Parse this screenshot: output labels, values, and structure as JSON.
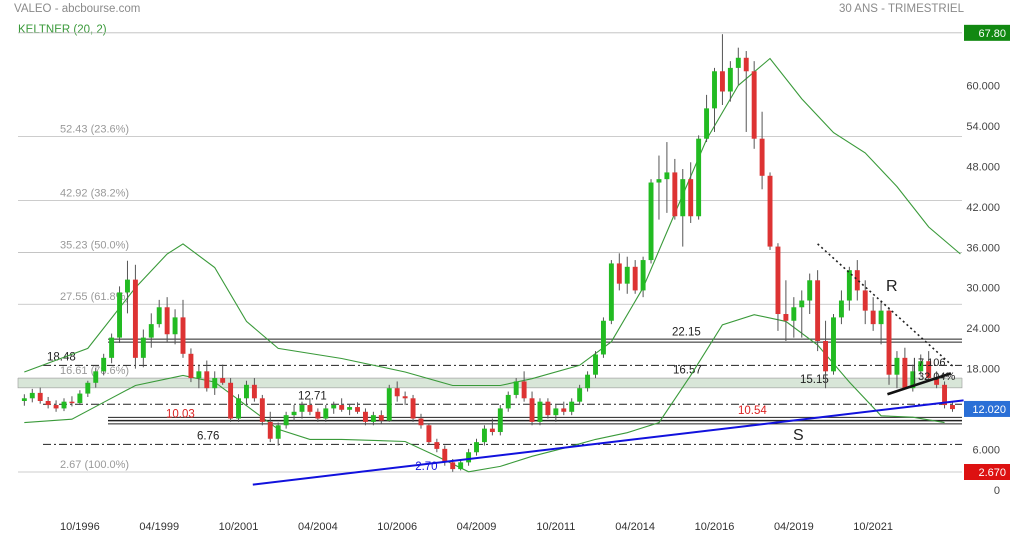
{
  "header": {
    "source": "VALEO - abcbourse.com",
    "period": "30 ANS - TRIMESTRIEL",
    "indicator": "KELTNER (20, 2)"
  },
  "colors": {
    "up": "#22bb22",
    "down": "#dd3333",
    "keltner": "#3a9a3a",
    "fib": "#b0b0b0",
    "trend_support": "#1111dd",
    "resistance_dotted": "#222222",
    "last_price_bg": "#2a6fd6",
    "high_bg": "#118811",
    "low_bg": "#dd1111",
    "zone": "#d8e6d8"
  },
  "chart_data": {
    "type": "candlestick",
    "title": "VALEO",
    "ylim": [
      0,
      70
    ],
    "y_ticks": [
      0,
      6.0,
      12.0,
      18.0,
      24.0,
      30.0,
      36.0,
      42.0,
      48.0,
      54.0,
      60.0
    ],
    "y_tick_labels": [
      "0",
      "6.000",
      "12.000",
      "18.000",
      "24.000",
      "30.000",
      "36.000",
      "42.000",
      "48.000",
      "54.000",
      "60.000"
    ],
    "x_tick_labels": [
      "10/1996",
      "04/1999",
      "10/2001",
      "04/2004",
      "10/2006",
      "04/2009",
      "10/2011",
      "04/2014",
      "10/2016",
      "04/2019",
      "10/2021"
    ],
    "x_range": [
      "1995",
      "2023"
    ],
    "candles": [
      {
        "x": 1995.0,
        "o": 13.2,
        "h": 14.2,
        "l": 12.5,
        "c": 13.6
      },
      {
        "x": 1995.25,
        "o": 13.6,
        "h": 15.0,
        "l": 13.0,
        "c": 14.4
      },
      {
        "x": 1995.5,
        "o": 14.4,
        "h": 15.2,
        "l": 12.8,
        "c": 13.2
      },
      {
        "x": 1995.75,
        "o": 13.2,
        "h": 13.8,
        "l": 12.1,
        "c": 12.6
      },
      {
        "x": 1996.0,
        "o": 12.6,
        "h": 13.3,
        "l": 11.6,
        "c": 12.1
      },
      {
        "x": 1996.25,
        "o": 12.1,
        "h": 13.6,
        "l": 11.7,
        "c": 13.1
      },
      {
        "x": 1996.5,
        "o": 13.1,
        "h": 13.9,
        "l": 12.4,
        "c": 12.9
      },
      {
        "x": 1996.75,
        "o": 12.9,
        "h": 14.8,
        "l": 12.6,
        "c": 14.3
      },
      {
        "x": 1997.0,
        "o": 14.3,
        "h": 16.2,
        "l": 13.8,
        "c": 15.9
      },
      {
        "x": 1997.25,
        "o": 15.9,
        "h": 18.1,
        "l": 15.2,
        "c": 17.6
      },
      {
        "x": 1997.5,
        "o": 17.6,
        "h": 20.2,
        "l": 17.0,
        "c": 19.6
      },
      {
        "x": 1997.75,
        "o": 19.6,
        "h": 23.2,
        "l": 18.8,
        "c": 22.6
      },
      {
        "x": 1998.0,
        "o": 22.6,
        "h": 30.2,
        "l": 21.8,
        "c": 29.3
      },
      {
        "x": 1998.25,
        "o": 29.3,
        "h": 34.0,
        "l": 26.2,
        "c": 31.2
      },
      {
        "x": 1998.5,
        "o": 31.2,
        "h": 33.4,
        "l": 18.0,
        "c": 19.6
      },
      {
        "x": 1998.75,
        "o": 19.6,
        "h": 23.8,
        "l": 18.2,
        "c": 22.6
      },
      {
        "x": 1999.0,
        "o": 22.6,
        "h": 26.2,
        "l": 21.1,
        "c": 24.6
      },
      {
        "x": 1999.25,
        "o": 24.6,
        "h": 28.2,
        "l": 24.1,
        "c": 27.1
      },
      {
        "x": 1999.5,
        "o": 27.1,
        "h": 28.6,
        "l": 22.0,
        "c": 23.1
      },
      {
        "x": 1999.75,
        "o": 23.1,
        "h": 26.8,
        "l": 21.6,
        "c": 25.6
      },
      {
        "x": 2000.0,
        "o": 25.6,
        "h": 28.2,
        "l": 19.6,
        "c": 20.2
      },
      {
        "x": 2000.25,
        "o": 20.2,
        "h": 21.0,
        "l": 16.0,
        "c": 16.6
      },
      {
        "x": 2000.5,
        "o": 16.6,
        "h": 18.6,
        "l": 15.1,
        "c": 17.6
      },
      {
        "x": 2000.75,
        "o": 17.6,
        "h": 19.2,
        "l": 14.6,
        "c": 15.1
      },
      {
        "x": 2001.0,
        "o": 15.1,
        "h": 17.6,
        "l": 14.1,
        "c": 16.6
      },
      {
        "x": 2001.25,
        "o": 16.6,
        "h": 18.6,
        "l": 15.6,
        "c": 15.9
      },
      {
        "x": 2001.5,
        "o": 15.9,
        "h": 16.6,
        "l": 10.1,
        "c": 10.6
      },
      {
        "x": 2001.75,
        "o": 10.6,
        "h": 14.2,
        "l": 10.1,
        "c": 13.6
      },
      {
        "x": 2002.0,
        "o": 13.6,
        "h": 16.2,
        "l": 12.6,
        "c": 15.6
      },
      {
        "x": 2002.25,
        "o": 15.6,
        "h": 16.6,
        "l": 13.1,
        "c": 13.6
      },
      {
        "x": 2002.5,
        "o": 13.6,
        "h": 14.1,
        "l": 9.6,
        "c": 10.1
      },
      {
        "x": 2002.75,
        "o": 10.1,
        "h": 11.6,
        "l": 7.1,
        "c": 7.6
      },
      {
        "x": 2003.0,
        "o": 7.6,
        "h": 10.0,
        "l": 6.6,
        "c": 9.6
      },
      {
        "x": 2003.25,
        "o": 9.6,
        "h": 11.6,
        "l": 9.1,
        "c": 11.1
      },
      {
        "x": 2003.5,
        "o": 11.1,
        "h": 12.6,
        "l": 10.3,
        "c": 11.6
      },
      {
        "x": 2003.75,
        "o": 11.6,
        "h": 13.1,
        "l": 10.6,
        "c": 12.6
      },
      {
        "x": 2004.0,
        "o": 12.6,
        "h": 13.6,
        "l": 11.1,
        "c": 11.6
      },
      {
        "x": 2004.25,
        "o": 11.6,
        "h": 12.1,
        "l": 10.1,
        "c": 10.6
      },
      {
        "x": 2004.5,
        "o": 10.6,
        "h": 12.6,
        "l": 10.1,
        "c": 12.1
      },
      {
        "x": 2004.75,
        "o": 12.1,
        "h": 13.1,
        "l": 11.3,
        "c": 12.6
      },
      {
        "x": 2005.0,
        "o": 12.6,
        "h": 13.6,
        "l": 11.6,
        "c": 11.9
      },
      {
        "x": 2005.25,
        "o": 11.9,
        "h": 12.6,
        "l": 11.1,
        "c": 12.3
      },
      {
        "x": 2005.5,
        "o": 12.3,
        "h": 13.0,
        "l": 11.3,
        "c": 11.6
      },
      {
        "x": 2005.75,
        "o": 11.6,
        "h": 12.1,
        "l": 9.6,
        "c": 10.1
      },
      {
        "x": 2006.0,
        "o": 10.1,
        "h": 11.6,
        "l": 9.6,
        "c": 11.1
      },
      {
        "x": 2006.25,
        "o": 11.1,
        "h": 11.8,
        "l": 9.8,
        "c": 10.3
      },
      {
        "x": 2006.5,
        "o": 10.3,
        "h": 15.6,
        "l": 10.1,
        "c": 15.1
      },
      {
        "x": 2006.75,
        "o": 15.1,
        "h": 16.1,
        "l": 13.1,
        "c": 13.9
      },
      {
        "x": 2007.0,
        "o": 13.9,
        "h": 14.6,
        "l": 12.6,
        "c": 13.6
      },
      {
        "x": 2007.25,
        "o": 13.6,
        "h": 14.1,
        "l": 10.1,
        "c": 10.6
      },
      {
        "x": 2007.5,
        "o": 10.6,
        "h": 11.3,
        "l": 9.1,
        "c": 9.6
      },
      {
        "x": 2007.75,
        "o": 9.6,
        "h": 9.9,
        "l": 6.8,
        "c": 7.1
      },
      {
        "x": 2008.0,
        "o": 7.1,
        "h": 7.6,
        "l": 5.6,
        "c": 6.1
      },
      {
        "x": 2008.25,
        "o": 6.1,
        "h": 6.6,
        "l": 3.6,
        "c": 4.1
      },
      {
        "x": 2008.5,
        "o": 4.1,
        "h": 4.6,
        "l": 2.7,
        "c": 3.1
      },
      {
        "x": 2008.75,
        "o": 3.1,
        "h": 4.6,
        "l": 2.9,
        "c": 4.1
      },
      {
        "x": 2009.0,
        "o": 4.1,
        "h": 6.1,
        "l": 3.6,
        "c": 5.6
      },
      {
        "x": 2009.25,
        "o": 5.6,
        "h": 7.6,
        "l": 5.1,
        "c": 7.1
      },
      {
        "x": 2009.5,
        "o": 7.1,
        "h": 9.6,
        "l": 6.6,
        "c": 9.1
      },
      {
        "x": 2009.75,
        "o": 9.1,
        "h": 10.6,
        "l": 8.1,
        "c": 8.6
      },
      {
        "x": 2010.0,
        "o": 8.6,
        "h": 12.6,
        "l": 8.1,
        "c": 12.1
      },
      {
        "x": 2010.25,
        "o": 12.1,
        "h": 14.6,
        "l": 11.6,
        "c": 14.1
      },
      {
        "x": 2010.5,
        "o": 14.1,
        "h": 16.6,
        "l": 13.6,
        "c": 16.1
      },
      {
        "x": 2010.75,
        "o": 16.1,
        "h": 17.6,
        "l": 13.1,
        "c": 13.6
      },
      {
        "x": 2011.0,
        "o": 13.6,
        "h": 14.6,
        "l": 9.6,
        "c": 10.1
      },
      {
        "x": 2011.25,
        "o": 10.1,
        "h": 13.6,
        "l": 9.6,
        "c": 13.1
      },
      {
        "x": 2011.5,
        "o": 13.1,
        "h": 13.6,
        "l": 10.6,
        "c": 11.1
      },
      {
        "x": 2011.75,
        "o": 11.1,
        "h": 12.6,
        "l": 10.1,
        "c": 12.1
      },
      {
        "x": 2012.0,
        "o": 12.1,
        "h": 13.1,
        "l": 11.1,
        "c": 11.6
      },
      {
        "x": 2012.25,
        "o": 11.6,
        "h": 13.6,
        "l": 11.1,
        "c": 13.1
      },
      {
        "x": 2012.5,
        "o": 13.1,
        "h": 15.6,
        "l": 12.6,
        "c": 15.1
      },
      {
        "x": 2012.75,
        "o": 15.1,
        "h": 17.6,
        "l": 14.6,
        "c": 17.1
      },
      {
        "x": 2013.0,
        "o": 17.1,
        "h": 20.6,
        "l": 16.6,
        "c": 20.1
      },
      {
        "x": 2013.25,
        "o": 20.1,
        "h": 25.6,
        "l": 19.6,
        "c": 25.1
      },
      {
        "x": 2013.5,
        "o": 25.1,
        "h": 34.1,
        "l": 24.6,
        "c": 33.6
      },
      {
        "x": 2013.75,
        "o": 33.6,
        "h": 35.1,
        "l": 29.6,
        "c": 30.6
      },
      {
        "x": 2014.0,
        "o": 30.6,
        "h": 34.6,
        "l": 29.1,
        "c": 33.1
      },
      {
        "x": 2014.25,
        "o": 33.1,
        "h": 34.1,
        "l": 29.1,
        "c": 29.6
      },
      {
        "x": 2014.5,
        "o": 29.6,
        "h": 34.6,
        "l": 28.6,
        "c": 34.1
      },
      {
        "x": 2014.75,
        "o": 34.1,
        "h": 46.1,
        "l": 33.6,
        "c": 45.6
      },
      {
        "x": 2015.0,
        "o": 45.6,
        "h": 49.6,
        "l": 40.1,
        "c": 46.1
      },
      {
        "x": 2015.25,
        "o": 46.1,
        "h": 51.6,
        "l": 41.1,
        "c": 47.1
      },
      {
        "x": 2015.5,
        "o": 47.1,
        "h": 49.1,
        "l": 40.1,
        "c": 40.6
      },
      {
        "x": 2015.75,
        "o": 40.6,
        "h": 47.6,
        "l": 36.1,
        "c": 46.1
      },
      {
        "x": 2016.0,
        "o": 46.1,
        "h": 48.6,
        "l": 39.6,
        "c": 40.6
      },
      {
        "x": 2016.25,
        "o": 40.6,
        "h": 52.6,
        "l": 40.1,
        "c": 52.1
      },
      {
        "x": 2016.5,
        "o": 52.1,
        "h": 58.6,
        "l": 51.6,
        "c": 56.6
      },
      {
        "x": 2016.75,
        "o": 56.6,
        "h": 62.6,
        "l": 53.1,
        "c": 62.1
      },
      {
        "x": 2017.0,
        "o": 62.1,
        "h": 67.6,
        "l": 57.1,
        "c": 59.1
      },
      {
        "x": 2017.25,
        "o": 59.1,
        "h": 63.6,
        "l": 57.6,
        "c": 62.6
      },
      {
        "x": 2017.5,
        "o": 62.6,
        "h": 65.6,
        "l": 60.1,
        "c": 64.1
      },
      {
        "x": 2017.75,
        "o": 64.1,
        "h": 65.1,
        "l": 53.1,
        "c": 62.1
      },
      {
        "x": 2018.0,
        "o": 62.1,
        "h": 63.6,
        "l": 50.6,
        "c": 52.1
      },
      {
        "x": 2018.25,
        "o": 52.1,
        "h": 56.1,
        "l": 44.6,
        "c": 46.6
      },
      {
        "x": 2018.5,
        "o": 46.6,
        "h": 47.1,
        "l": 35.6,
        "c": 36.1
      },
      {
        "x": 2018.75,
        "o": 36.1,
        "h": 36.6,
        "l": 23.6,
        "c": 26.1
      },
      {
        "x": 2019.0,
        "o": 26.1,
        "h": 31.1,
        "l": 22.1,
        "c": 25.1
      },
      {
        "x": 2019.25,
        "o": 25.1,
        "h": 28.6,
        "l": 22.6,
        "c": 27.1
      },
      {
        "x": 2019.5,
        "o": 27.1,
        "h": 29.6,
        "l": 22.6,
        "c": 28.1
      },
      {
        "x": 2019.75,
        "o": 28.1,
        "h": 32.1,
        "l": 26.1,
        "c": 31.1
      },
      {
        "x": 2020.0,
        "o": 31.1,
        "h": 32.6,
        "l": 20.6,
        "c": 22.1
      },
      {
        "x": 2020.25,
        "o": 22.1,
        "h": 25.1,
        "l": 15.1,
        "c": 17.6
      },
      {
        "x": 2020.5,
        "o": 17.6,
        "h": 26.1,
        "l": 17.1,
        "c": 25.6
      },
      {
        "x": 2020.75,
        "o": 25.6,
        "h": 29.6,
        "l": 24.6,
        "c": 28.1
      },
      {
        "x": 2021.0,
        "o": 28.1,
        "h": 33.1,
        "l": 26.6,
        "c": 32.6
      },
      {
        "x": 2021.25,
        "o": 32.6,
        "h": 34.1,
        "l": 28.1,
        "c": 29.6
      },
      {
        "x": 2021.5,
        "o": 29.6,
        "h": 31.1,
        "l": 24.6,
        "c": 26.6
      },
      {
        "x": 2021.75,
        "o": 26.6,
        "h": 28.6,
        "l": 23.6,
        "c": 24.6
      },
      {
        "x": 2022.0,
        "o": 24.6,
        "h": 28.1,
        "l": 21.6,
        "c": 26.6
      },
      {
        "x": 2022.25,
        "o": 26.6,
        "h": 27.1,
        "l": 15.6,
        "c": 17.1
      },
      {
        "x": 2022.5,
        "o": 17.1,
        "h": 20.6,
        "l": 15.1,
        "c": 19.6
      },
      {
        "x": 2022.75,
        "o": 19.6,
        "h": 21.1,
        "l": 15.6,
        "c": 15.1
      },
      {
        "x": 2023.0,
        "o": 15.1,
        "h": 18.6,
        "l": 14.6,
        "c": 17.6
      },
      {
        "x": 2023.25,
        "o": 17.6,
        "h": 20.1,
        "l": 17.1,
        "c": 19.1
      },
      {
        "x": 2023.5,
        "o": 19.1,
        "h": 20.6,
        "l": 16.1,
        "c": 16.6
      },
      {
        "x": 2023.75,
        "o": 16.6,
        "h": 17.6,
        "l": 15.1,
        "c": 15.6
      },
      {
        "x": 2024.0,
        "o": 15.6,
        "h": 16.1,
        "l": 12.1,
        "c": 12.6
      },
      {
        "x": 2024.25,
        "o": 12.6,
        "h": 13.1,
        "l": 11.6,
        "c": 12.0
      }
    ],
    "keltner_upper": [
      [
        1995,
        17.5
      ],
      [
        1997,
        21
      ],
      [
        1998.5,
        30
      ],
      [
        1999.5,
        35
      ],
      [
        2000,
        36.5
      ],
      [
        2001,
        33
      ],
      [
        2002,
        25
      ],
      [
        2003,
        21
      ],
      [
        2005,
        19.5
      ],
      [
        2007,
        17.5
      ],
      [
        2008.5,
        15.5
      ],
      [
        2010,
        15.5
      ],
      [
        2011,
        16.5
      ],
      [
        2012.5,
        18.5
      ],
      [
        2013.5,
        22
      ],
      [
        2014.5,
        30
      ],
      [
        2015.5,
        41
      ],
      [
        2016.5,
        52
      ],
      [
        2017.5,
        60
      ],
      [
        2018.5,
        64
      ],
      [
        2019.5,
        58
      ],
      [
        2020.5,
        53
      ],
      [
        2021.5,
        50
      ],
      [
        2022.5,
        45
      ],
      [
        2023.5,
        39
      ],
      [
        2024.5,
        35
      ]
    ],
    "keltner_lower": [
      [
        1995,
        10
      ],
      [
        1996.5,
        10.5
      ],
      [
        1997.5,
        13
      ],
      [
        1998.5,
        15.5
      ],
      [
        2000,
        17
      ],
      [
        2001,
        16
      ],
      [
        2002,
        12.5
      ],
      [
        2003,
        9
      ],
      [
        2004,
        7.5
      ],
      [
        2005,
        7.5
      ],
      [
        2007,
        7.2
      ],
      [
        2008,
        5
      ],
      [
        2009,
        2.7
      ],
      [
        2010,
        3.5
      ],
      [
        2011,
        5
      ],
      [
        2012,
        6.2
      ],
      [
        2013,
        7.5
      ],
      [
        2014,
        8.5
      ],
      [
        2015,
        10
      ],
      [
        2016,
        17
      ],
      [
        2017,
        24.5
      ],
      [
        2018,
        26
      ],
      [
        2019,
        25
      ],
      [
        2020,
        21.5
      ],
      [
        2021,
        16
      ],
      [
        2022,
        11
      ],
      [
        2023,
        10.8
      ],
      [
        2024,
        10
      ]
    ],
    "fibonacci": [
      {
        "value": 67.8,
        "label": "67.80"
      },
      {
        "value": 52.43,
        "label": "52.43  (23.6%)"
      },
      {
        "value": 42.92,
        "label": "42.92  (38.2%)"
      },
      {
        "value": 35.23,
        "label": "35.23  (50.0%)"
      },
      {
        "value": 27.55,
        "label": "27.55  (61.8%)"
      },
      {
        "value": 16.61,
        "label": "16.61  (78.6%)"
      },
      {
        "value": 2.67,
        "label": "2.67  (100.0%)"
      }
    ],
    "horizontal_levels": [
      {
        "value": 22.15,
        "label": "22.15",
        "style": "double"
      },
      {
        "value": 18.48,
        "label": "18.48",
        "style": "dashdot"
      },
      {
        "value": 16.57,
        "label": "16.57",
        "style": "zone"
      },
      {
        "value": 15.15,
        "label": "15.15",
        "style": "zone"
      },
      {
        "value": 12.71,
        "label": "12.71",
        "style": "dashdot"
      },
      {
        "value": 10.54,
        "label": "10.54",
        "style": "double"
      },
      {
        "value": 10.03,
        "label": "10.03",
        "style": "double"
      },
      {
        "value": 6.76,
        "label": "6.76",
        "style": "dashdot"
      }
    ],
    "trendlines": {
      "support_start": [
        2002.2,
        0.8
      ],
      "support_end": [
        2024.6,
        13.3
      ],
      "support_label": "2.70",
      "resistance_start": [
        2020.0,
        36.5
      ],
      "resistance_end": [
        2024.3,
        18.2
      ]
    },
    "annotations": {
      "resistance": "R",
      "support": "S",
      "target_value": "7.106",
      "target_percent": "32.04%"
    },
    "price_tags": {
      "high": "67.80",
      "last": "12.020",
      "low": "2.670"
    }
  }
}
